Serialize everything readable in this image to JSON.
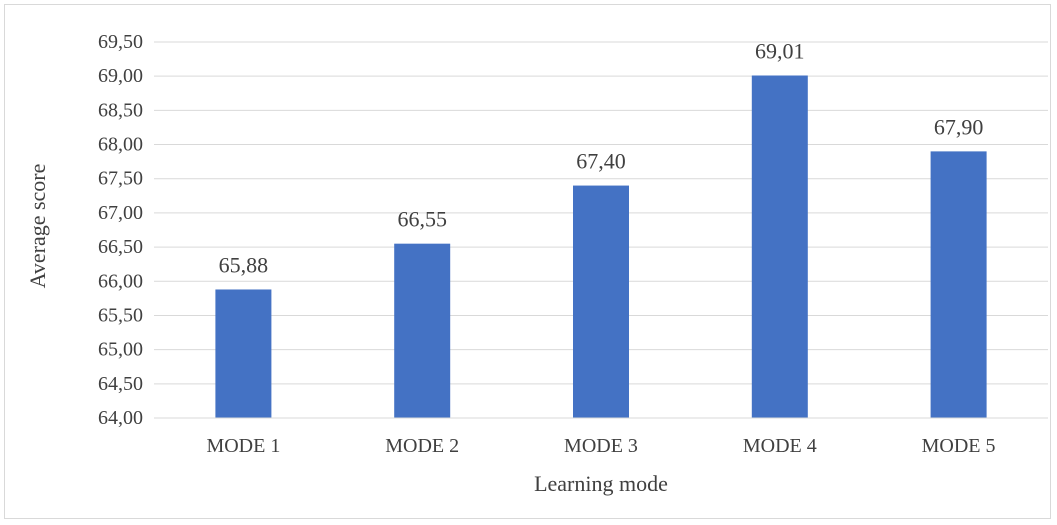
{
  "chart_data": {
    "type": "bar",
    "categories": [
      "MODE 1",
      "MODE 2",
      "MODE 3",
      "MODE 4",
      "MODE 5"
    ],
    "values": [
      65.88,
      66.55,
      67.4,
      69.01,
      67.9
    ],
    "value_labels": [
      "65,88",
      "66,55",
      "67,40",
      "69,01",
      "67,90"
    ],
    "y_ticks": [
      64.0,
      64.5,
      65.0,
      65.5,
      66.0,
      66.5,
      67.0,
      67.5,
      68.0,
      68.5,
      69.0,
      69.5
    ],
    "y_tick_labels": [
      "64,00",
      "64,50",
      "65,00",
      "65,50",
      "66,00",
      "66,50",
      "67,00",
      "67,50",
      "68,00",
      "68,50",
      "69,00",
      "69,50"
    ],
    "ylim": [
      64.0,
      69.5
    ],
    "xlabel": "Learning mode",
    "ylabel": "Average score",
    "grid": true,
    "legend": "none",
    "bar_color": "#4472C4",
    "grid_color": "#d9d9d9"
  }
}
